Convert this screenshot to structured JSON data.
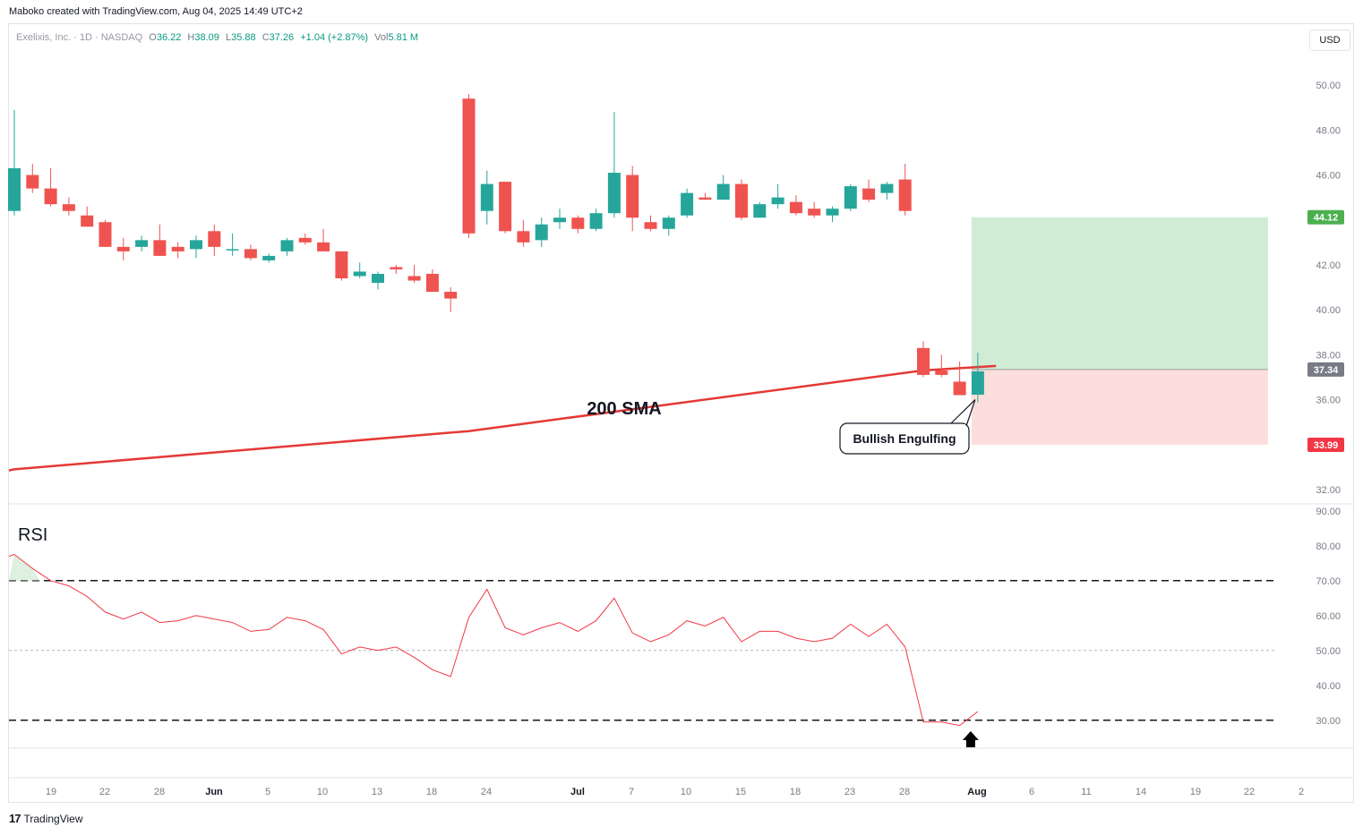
{
  "header": {
    "credit": "Maboko created with TradingView.com, Aug 04, 2025 14:49 UTC+2"
  },
  "legend": {
    "symbol": "Exelixis, Inc. · 1D · NASDAQ",
    "o_label": "O",
    "o_value": "36.22",
    "h_label": "H",
    "h_value": "38.09",
    "l_label": "L",
    "l_value": "35.88",
    "c_label": "C",
    "c_value": "37.26",
    "change": "+1.04 (+2.87%)",
    "vol_label": "Vol",
    "vol_value": "5.81 M"
  },
  "currency_button": "USD",
  "footer": {
    "logo_text": "TradingView",
    "logo_mark": "17"
  },
  "colors": {
    "up": "#26a69a",
    "down": "#ef5350",
    "sma": "#e53935",
    "rsi": "#f23645",
    "target_zone": "#d1ecd5",
    "stop_zone": "#fcdfdc"
  },
  "chart_data": [
    {
      "type": "candlestick",
      "ylim": [
        31.4,
        51.4
      ],
      "y_ticks": [
        "50.00",
        "48.00",
        "46.00",
        "44.00",
        "42.00",
        "40.00",
        "38.00",
        "36.00",
        "34.00",
        "32.00"
      ],
      "x_tick_labels": [
        "19",
        "22",
        "28",
        "Jun",
        "5",
        "10",
        "13",
        "18",
        "24",
        "Jul",
        "7",
        "10",
        "15",
        "18",
        "23",
        "28",
        "Aug",
        "6",
        "11",
        "14",
        "19",
        "22",
        "2"
      ],
      "candles": [
        {
          "o": 44.4,
          "h": 48.9,
          "l": 44.2,
          "c": 46.3
        },
        {
          "o": 46.0,
          "h": 46.5,
          "l": 45.2,
          "c": 45.4
        },
        {
          "o": 45.4,
          "h": 46.3,
          "l": 44.6,
          "c": 44.7
        },
        {
          "o": 44.7,
          "h": 45.0,
          "l": 44.2,
          "c": 44.4
        },
        {
          "o": 44.2,
          "h": 44.6,
          "l": 43.7,
          "c": 43.7
        },
        {
          "o": 43.9,
          "h": 44.0,
          "l": 42.8,
          "c": 42.8
        },
        {
          "o": 42.8,
          "h": 43.2,
          "l": 42.2,
          "c": 42.6
        },
        {
          "o": 42.8,
          "h": 43.3,
          "l": 42.6,
          "c": 43.1
        },
        {
          "o": 43.1,
          "h": 43.8,
          "l": 42.4,
          "c": 42.4
        },
        {
          "o": 42.8,
          "h": 43.0,
          "l": 42.3,
          "c": 42.6
        },
        {
          "o": 42.7,
          "h": 43.3,
          "l": 42.3,
          "c": 43.1
        },
        {
          "o": 43.5,
          "h": 43.8,
          "l": 42.4,
          "c": 42.8
        },
        {
          "o": 42.7,
          "h": 43.4,
          "l": 42.4,
          "c": 42.7
        },
        {
          "o": 42.7,
          "h": 42.9,
          "l": 42.2,
          "c": 42.3
        },
        {
          "o": 42.2,
          "h": 42.5,
          "l": 42.1,
          "c": 42.4
        },
        {
          "o": 42.6,
          "h": 43.2,
          "l": 42.4,
          "c": 43.1
        },
        {
          "o": 43.2,
          "h": 43.4,
          "l": 42.9,
          "c": 43.0
        },
        {
          "o": 43.0,
          "h": 43.6,
          "l": 42.6,
          "c": 42.6
        },
        {
          "o": 42.6,
          "h": 42.6,
          "l": 41.3,
          "c": 41.4
        },
        {
          "o": 41.5,
          "h": 42.1,
          "l": 41.4,
          "c": 41.7
        },
        {
          "o": 41.2,
          "h": 41.7,
          "l": 40.9,
          "c": 41.6
        },
        {
          "o": 41.9,
          "h": 42.0,
          "l": 41.6,
          "c": 41.8
        },
        {
          "o": 41.5,
          "h": 42.0,
          "l": 41.2,
          "c": 41.3
        },
        {
          "o": 41.6,
          "h": 41.8,
          "l": 40.8,
          "c": 40.8
        },
        {
          "o": 40.8,
          "h": 41.0,
          "l": 39.9,
          "c": 40.5
        },
        {
          "o": 49.4,
          "h": 49.6,
          "l": 43.2,
          "c": 43.4
        },
        {
          "o": 44.4,
          "h": 46.2,
          "l": 43.8,
          "c": 45.6
        },
        {
          "o": 45.7,
          "h": 45.7,
          "l": 43.4,
          "c": 43.5
        },
        {
          "o": 43.5,
          "h": 44.0,
          "l": 42.8,
          "c": 43.0
        },
        {
          "o": 43.1,
          "h": 44.1,
          "l": 42.8,
          "c": 43.8
        },
        {
          "o": 43.9,
          "h": 44.5,
          "l": 43.6,
          "c": 44.1
        },
        {
          "o": 44.1,
          "h": 44.2,
          "l": 43.4,
          "c": 43.6
        },
        {
          "o": 43.6,
          "h": 44.5,
          "l": 43.5,
          "c": 44.3
        },
        {
          "o": 44.3,
          "h": 48.8,
          "l": 44.1,
          "c": 46.1
        },
        {
          "o": 46.0,
          "h": 46.4,
          "l": 43.5,
          "c": 44.1
        },
        {
          "o": 43.9,
          "h": 44.2,
          "l": 43.5,
          "c": 43.6
        },
        {
          "o": 43.6,
          "h": 44.2,
          "l": 43.3,
          "c": 44.1
        },
        {
          "o": 44.2,
          "h": 45.4,
          "l": 44.1,
          "c": 45.2
        },
        {
          "o": 45.0,
          "h": 45.2,
          "l": 44.9,
          "c": 44.9
        },
        {
          "o": 44.9,
          "h": 46.0,
          "l": 44.9,
          "c": 45.6
        },
        {
          "o": 45.6,
          "h": 45.8,
          "l": 44.0,
          "c": 44.1
        },
        {
          "o": 44.1,
          "h": 44.8,
          "l": 44.1,
          "c": 44.7
        },
        {
          "o": 44.7,
          "h": 45.6,
          "l": 44.5,
          "c": 45.0
        },
        {
          "o": 44.8,
          "h": 45.1,
          "l": 44.2,
          "c": 44.3
        },
        {
          "o": 44.5,
          "h": 44.8,
          "l": 44.1,
          "c": 44.2
        },
        {
          "o": 44.2,
          "h": 44.6,
          "l": 43.9,
          "c": 44.5
        },
        {
          "o": 44.5,
          "h": 45.6,
          "l": 44.4,
          "c": 45.5
        },
        {
          "o": 45.4,
          "h": 45.8,
          "l": 44.8,
          "c": 44.9
        },
        {
          "o": 45.2,
          "h": 45.7,
          "l": 44.9,
          "c": 45.6
        },
        {
          "o": 45.8,
          "h": 46.5,
          "l": 44.2,
          "c": 44.4
        },
        {
          "o": 38.3,
          "h": 38.6,
          "l": 37.0,
          "c": 37.1
        },
        {
          "o": 37.3,
          "h": 38.0,
          "l": 37.0,
          "c": 37.1
        },
        {
          "o": 36.8,
          "h": 37.7,
          "l": 36.2,
          "c": 36.2
        },
        {
          "o": 36.22,
          "h": 38.09,
          "l": 35.88,
          "c": 37.26
        }
      ],
      "sma_label": "200 SMA",
      "sma_points": [
        [
          0,
          32.9
        ],
        [
          25,
          34.6
        ],
        [
          50,
          37.3
        ],
        [
          54,
          37.5
        ]
      ],
      "position": {
        "target": 44.12,
        "entry": 37.34,
        "stop": 33.99
      },
      "price_labels": [
        "44.12",
        "37.34",
        "33.99"
      ],
      "annotation": "Bullish Engulfing"
    },
    {
      "type": "line",
      "title": "RSI",
      "ylim": [
        22,
        92
      ],
      "y_ticks": [
        "90.00",
        "80.00",
        "70.00",
        "60.00",
        "50.00",
        "40.00",
        "30.00"
      ],
      "levels": [
        70,
        50,
        30
      ],
      "values": [
        77.5,
        73.5,
        70,
        68.5,
        65.5,
        61,
        59,
        61,
        58,
        58.5,
        60,
        59,
        58,
        55.5,
        56,
        59.5,
        58.5,
        56,
        49,
        51,
        50,
        51,
        48,
        44.5,
        42.5,
        59.5,
        67.5,
        56.5,
        54.5,
        56.5,
        58,
        55.5,
        58.5,
        65,
        55,
        52.5,
        54.5,
        58.5,
        57,
        59.5,
        52.5,
        55.5,
        55.5,
        53.5,
        52.5,
        53.5,
        57.5,
        54,
        57.5,
        51,
        29.5,
        29.5,
        28.5,
        32.5
      ]
    }
  ]
}
